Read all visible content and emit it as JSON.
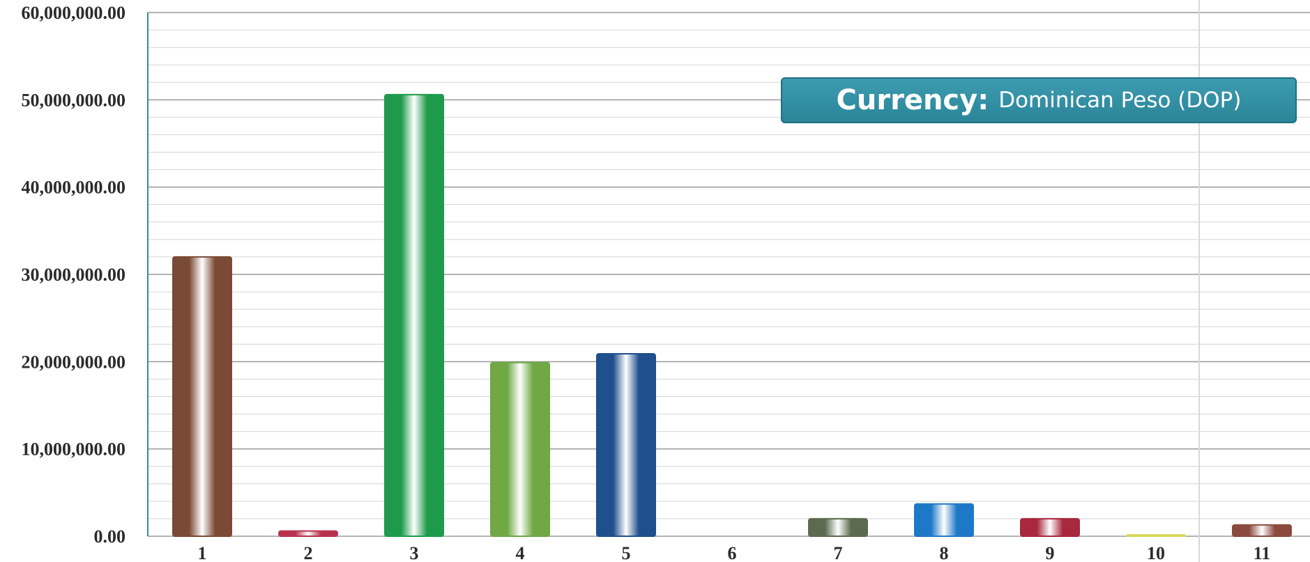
{
  "chart_data": {
    "type": "bar",
    "categories": [
      "1",
      "2",
      "3",
      "4",
      "5",
      "6",
      "7",
      "8",
      "9",
      "10",
      "11"
    ],
    "values": [
      32000000,
      600000,
      50600000,
      19900000,
      20900000,
      0,
      2000000,
      3700000,
      2000000,
      100000,
      1300000
    ],
    "ylim": [
      0,
      60000000
    ],
    "yticks": [
      0,
      10000000,
      20000000,
      30000000,
      40000000,
      50000000,
      60000000
    ],
    "ytick_labels": [
      "0.00",
      "10,000,000.00",
      "20,000,000.00",
      "30,000,000.00",
      "40,000,000.00",
      "50,000,000.00",
      "60,000,000.00"
    ],
    "bar_colors": [
      "#7a4a36",
      "#b8324e",
      "#1e9a4a",
      "#6fa844",
      "#1f4f8c",
      "#cccccc",
      "#5c6b4e",
      "#1e78c8",
      "#a8283e",
      "#d8d860",
      "#8a4a3e"
    ],
    "grid": true,
    "legend": "none"
  },
  "annotation": {
    "label": "Currency:",
    "value": "Dominican Peso (DOP)"
  }
}
